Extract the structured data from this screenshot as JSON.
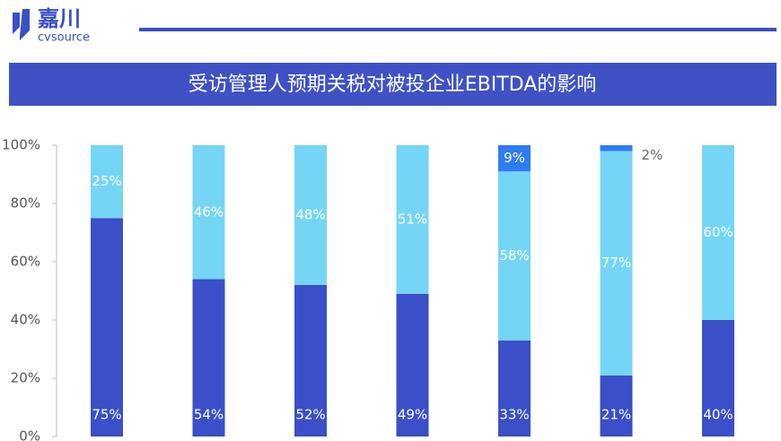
{
  "logo": {
    "name": "嘉川",
    "sub": "cvsource"
  },
  "chart_data": {
    "type": "stacked-bar",
    "title": "受访管理人预期关税对被投企业EBITDA的影响",
    "categories": [
      null,
      null,
      null,
      null,
      null,
      null,
      null
    ],
    "series": [
      {
        "color": "#3a4fc8",
        "values": [
          75,
          54,
          52,
          49,
          33,
          21,
          40
        ],
        "value_labels": [
          "75%",
          "54%",
          "52%",
          "49%",
          "33%",
          "21%",
          "40%"
        ]
      },
      {
        "color": "#75d5f5",
        "values": [
          25,
          46,
          48,
          51,
          58,
          77,
          60
        ],
        "value_labels": [
          "25%",
          "46%",
          "48%",
          "51%",
          "58%",
          "77%",
          "60%"
        ]
      },
      {
        "color": "#2e7cf0",
        "values": [
          null,
          null,
          null,
          null,
          9,
          2,
          null
        ],
        "value_labels": [
          null,
          null,
          null,
          null,
          "9%",
          "2%",
          null
        ]
      }
    ],
    "ylim": [
      0,
      100
    ],
    "yticks": [
      {
        "value": 0,
        "label": "0%"
      },
      {
        "value": 20,
        "label": "20%"
      },
      {
        "value": 40,
        "label": "40%"
      },
      {
        "value": 60,
        "label": "60%"
      },
      {
        "value": 80,
        "label": "80%"
      },
      {
        "value": 100,
        "label": "100%"
      }
    ],
    "grid": false
  }
}
